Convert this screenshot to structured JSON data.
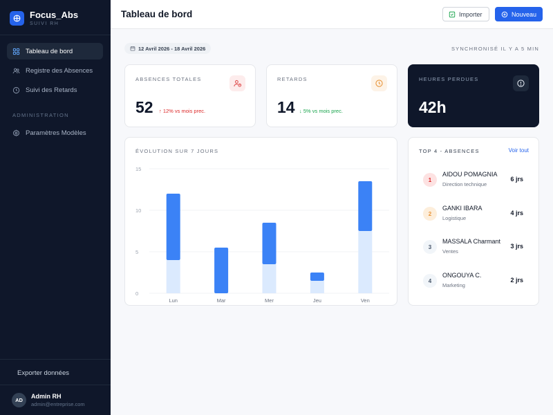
{
  "brand": {
    "name": "Focus_Abs",
    "subtitle": "SUIVI RH"
  },
  "sidebar": {
    "items": [
      {
        "label": "Tableau de bord",
        "icon": "grid-icon",
        "active": true
      },
      {
        "label": "Registre des Absences",
        "icon": "users-icon",
        "active": false
      },
      {
        "label": "Suivi des Retards",
        "icon": "clock-icon",
        "active": false
      }
    ],
    "section_label": "ADMINISTRATION",
    "admin_items": [
      {
        "label": "Paramètres Modèles",
        "icon": "gear-icon"
      }
    ],
    "export_label": "Exporter données",
    "user": {
      "initials": "AD",
      "name": "Admin RH",
      "email": "admin@entreprise.com"
    }
  },
  "header": {
    "title": "Tableau de bord",
    "import_label": "Importer",
    "new_label": "Nouveau"
  },
  "toolbar": {
    "date_range": "12 Avril 2026 - 18 Avril 2026",
    "sync_status": "SYNCHRONISÉ IL Y A 5 MIN"
  },
  "stats": [
    {
      "label": "ABSENCES TOTALES",
      "value": "52",
      "change": "↑ 12% vs mois prec.",
      "change_color": "#dc2626",
      "icon": "user-alert-icon",
      "icon_bg": "#fdecec",
      "icon_color": "#e05252"
    },
    {
      "label": "RETARDS",
      "value": "14",
      "change": "↓ 5% vs mois prec.",
      "change_color": "#16a34a",
      "icon": "clock-icon",
      "icon_bg": "#fdf3e7",
      "icon_color": "#e8953a"
    },
    {
      "label": "HEURES PERDUES",
      "value": "42h",
      "change": "",
      "icon": "alert-circle-icon",
      "icon_bg": "#1e293b",
      "icon_color": "#e2e8f0"
    }
  ],
  "chart": {
    "title": "ÉVOLUTION SUR 7 JOURS"
  },
  "chart_data": {
    "type": "bar",
    "stacked": true,
    "categories": [
      "Lun",
      "Mar",
      "Mer",
      "Jeu",
      "Ven"
    ],
    "series": [
      {
        "values": [
          4,
          0,
          3.5,
          1.5,
          7.5
        ],
        "color": "#dbeafe"
      },
      {
        "values": [
          8,
          5.5,
          5,
          1,
          6
        ],
        "color": "#3b82f6"
      }
    ],
    "yticks": [
      0,
      5,
      10,
      15
    ],
    "ylim": [
      0,
      15
    ],
    "grid": true
  },
  "top": {
    "title": "TOP 4 - ABSENCES",
    "see_all": "Voir tout",
    "items": [
      {
        "rank": "1",
        "name": "AIDOU POMAGNIA",
        "dept": "Direction technique",
        "days": "6 jrs",
        "bg": "#fde2e2",
        "fg": "#dc2626"
      },
      {
        "rank": "2",
        "name": "GANKI IBARA",
        "dept": "Logistique",
        "days": "4 jrs",
        "bg": "#fdeedb",
        "fg": "#e8953a"
      },
      {
        "rank": "3",
        "name": "MASSALA Charmant",
        "dept": "Ventes",
        "days": "3 jrs",
        "bg": "#f1f5f9",
        "fg": "#475569"
      },
      {
        "rank": "4",
        "name": "ONGOUYA C.",
        "dept": "Marketing",
        "days": "2 jrs",
        "bg": "#f1f5f9",
        "fg": "#475569"
      }
    ]
  }
}
